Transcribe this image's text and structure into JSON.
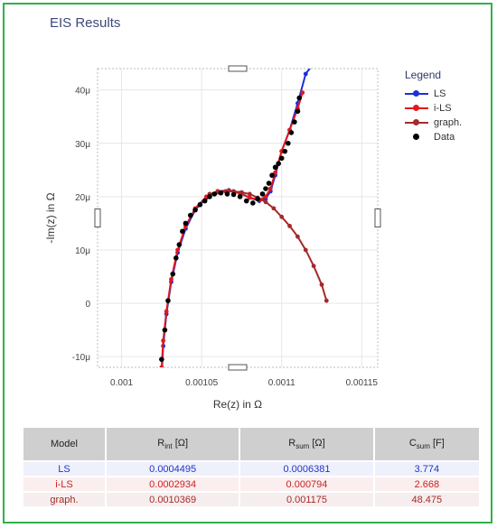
{
  "window": {
    "title": "EIS Results"
  },
  "legend": {
    "title": "Legend",
    "items": [
      {
        "label": "LS",
        "color": "#1f2ed6",
        "marker": "diamond-line"
      },
      {
        "label": "i-LS",
        "color": "#e0191c",
        "marker": "diamond-line"
      },
      {
        "label": "graph.",
        "color": "#a52a2a",
        "marker": "dot-line"
      },
      {
        "label": "Data",
        "color": "#000000",
        "marker": "dot"
      }
    ]
  },
  "chart_data": {
    "type": "scatter",
    "xlabel": "Re(z) in Ω",
    "ylabel": "-Im(z) in Ω",
    "xlim": [
      0.000985,
      0.00116
    ],
    "ylim": [
      -1.2e-05,
      4.4e-05
    ],
    "x_ticks": [
      {
        "value": 0.001,
        "label": "0.001"
      },
      {
        "value": 0.00105,
        "label": "0.00105"
      },
      {
        "value": 0.0011,
        "label": "0.0011"
      },
      {
        "value": 0.00115,
        "label": "0.00115"
      }
    ],
    "y_ticks": [
      {
        "value": -1e-05,
        "label": "-10μ"
      },
      {
        "value": 0,
        "label": "0"
      },
      {
        "value": 1e-05,
        "label": "10μ"
      },
      {
        "value": 2e-05,
        "label": "20μ"
      },
      {
        "value": 3e-05,
        "label": "30μ"
      },
      {
        "value": 4e-05,
        "label": "40μ"
      }
    ],
    "grid": true,
    "series": [
      {
        "name": "LS",
        "color": "#1f2ed6",
        "x": [
          0.001025,
          0.001026,
          0.001028,
          0.001031,
          0.001035,
          0.00104,
          0.001046,
          0.001053,
          0.00106,
          0.001067,
          0.001074,
          0.00108,
          0.001086,
          0.00109,
          0.001093,
          0.001096,
          0.0011,
          0.001105,
          0.00111,
          0.001115,
          0.00112
        ],
        "y": [
          -1.35e-05,
          -8e-06,
          -2e-06,
          4e-06,
          9.5e-06,
          1.4e-05,
          1.75e-05,
          1.98e-05,
          2.1e-05,
          2.12e-05,
          2.07e-05,
          1.98e-05,
          1.92e-05,
          1.96e-05,
          2.1e-05,
          2.4e-05,
          2.85e-05,
          3.25e-05,
          3.75e-05,
          4.3e-05,
          4.5e-05
        ]
      },
      {
        "name": "i-LS",
        "color": "#e0191c",
        "x": [
          0.001025,
          0.001026,
          0.001028,
          0.001031,
          0.001035,
          0.00104,
          0.001046,
          0.001053,
          0.00106,
          0.001067,
          0.001074,
          0.00108,
          0.001086,
          0.00109,
          0.001093,
          0.001096,
          0.0011,
          0.001105,
          0.00111,
          0.001113
        ],
        "y": [
          -1.2e-05,
          -7e-06,
          -1.5e-06,
          4.5e-06,
          1e-05,
          1.45e-05,
          1.78e-05,
          2e-05,
          2.1e-05,
          2.11e-05,
          2.06e-05,
          1.98e-05,
          1.94e-05,
          2e-05,
          2.15e-05,
          2.45e-05,
          2.85e-05,
          3.25e-05,
          3.65e-05,
          3.95e-05
        ]
      },
      {
        "name": "graph.",
        "color": "#a52a2a",
        "x": [
          0.001055,
          0.00106,
          0.001065,
          0.00107,
          0.001075,
          0.00108,
          0.001085,
          0.00109,
          0.001095,
          0.0011,
          0.001105,
          0.00111,
          0.001115,
          0.00112,
          0.001125,
          0.001128
        ],
        "y": [
          2.05e-05,
          2.08e-05,
          2.1e-05,
          2.1e-05,
          2.08e-05,
          2.05e-05,
          1.98e-05,
          1.9e-05,
          1.78e-05,
          1.62e-05,
          1.45e-05,
          1.25e-05,
          1e-05,
          7e-06,
          3.5e-06,
          5e-07
        ]
      },
      {
        "name": "Data",
        "color": "#000000",
        "x": [
          0.001025,
          0.001027,
          0.001029,
          0.001032,
          0.001034,
          0.001036,
          0.001038,
          0.00104,
          0.001043,
          0.001046,
          0.001049,
          0.001052,
          0.001055,
          0.001058,
          0.001062,
          0.001066,
          0.00107,
          0.001074,
          0.001078,
          0.001082,
          0.001085,
          0.001088,
          0.00109,
          0.001092,
          0.001094,
          0.001096,
          0.001098,
          0.0011,
          0.001102,
          0.001104,
          0.001106,
          0.001108,
          0.00111,
          0.001111
        ],
        "y": [
          -1.05e-05,
          -5e-06,
          5e-07,
          5.5e-06,
          8.5e-06,
          1.1e-05,
          1.35e-05,
          1.5e-05,
          1.65e-05,
          1.75e-05,
          1.85e-05,
          1.92e-05,
          2e-05,
          2.05e-05,
          2.07e-05,
          2.05e-05,
          2.04e-05,
          2e-05,
          1.92e-05,
          1.88e-05,
          1.96e-05,
          2.05e-05,
          2.15e-05,
          2.25e-05,
          2.4e-05,
          2.55e-05,
          2.62e-05,
          2.72e-05,
          2.85e-05,
          3e-05,
          3.2e-05,
          3.4e-05,
          3.6e-05,
          3.85e-05
        ]
      }
    ]
  },
  "table": {
    "headers": [
      {
        "main": "Model",
        "sub": "",
        "unit": ""
      },
      {
        "main": "R",
        "sub": "int",
        "unit": " [Ω]"
      },
      {
        "main": "R",
        "sub": "sum",
        "unit": " [Ω]"
      },
      {
        "main": "C",
        "sub": "sum",
        "unit": " [F]"
      }
    ],
    "rows": [
      {
        "model": "LS",
        "r_int": "0.0004495",
        "r_sum": "0.0006381",
        "c_sum": "3.774"
      },
      {
        "model": "i-LS",
        "r_int": "0.0002934",
        "r_sum": "0.000794",
        "c_sum": "2.668"
      },
      {
        "model": "graph.",
        "r_int": "0.0010369",
        "r_sum": "0.001175",
        "c_sum": "48.475"
      }
    ]
  }
}
